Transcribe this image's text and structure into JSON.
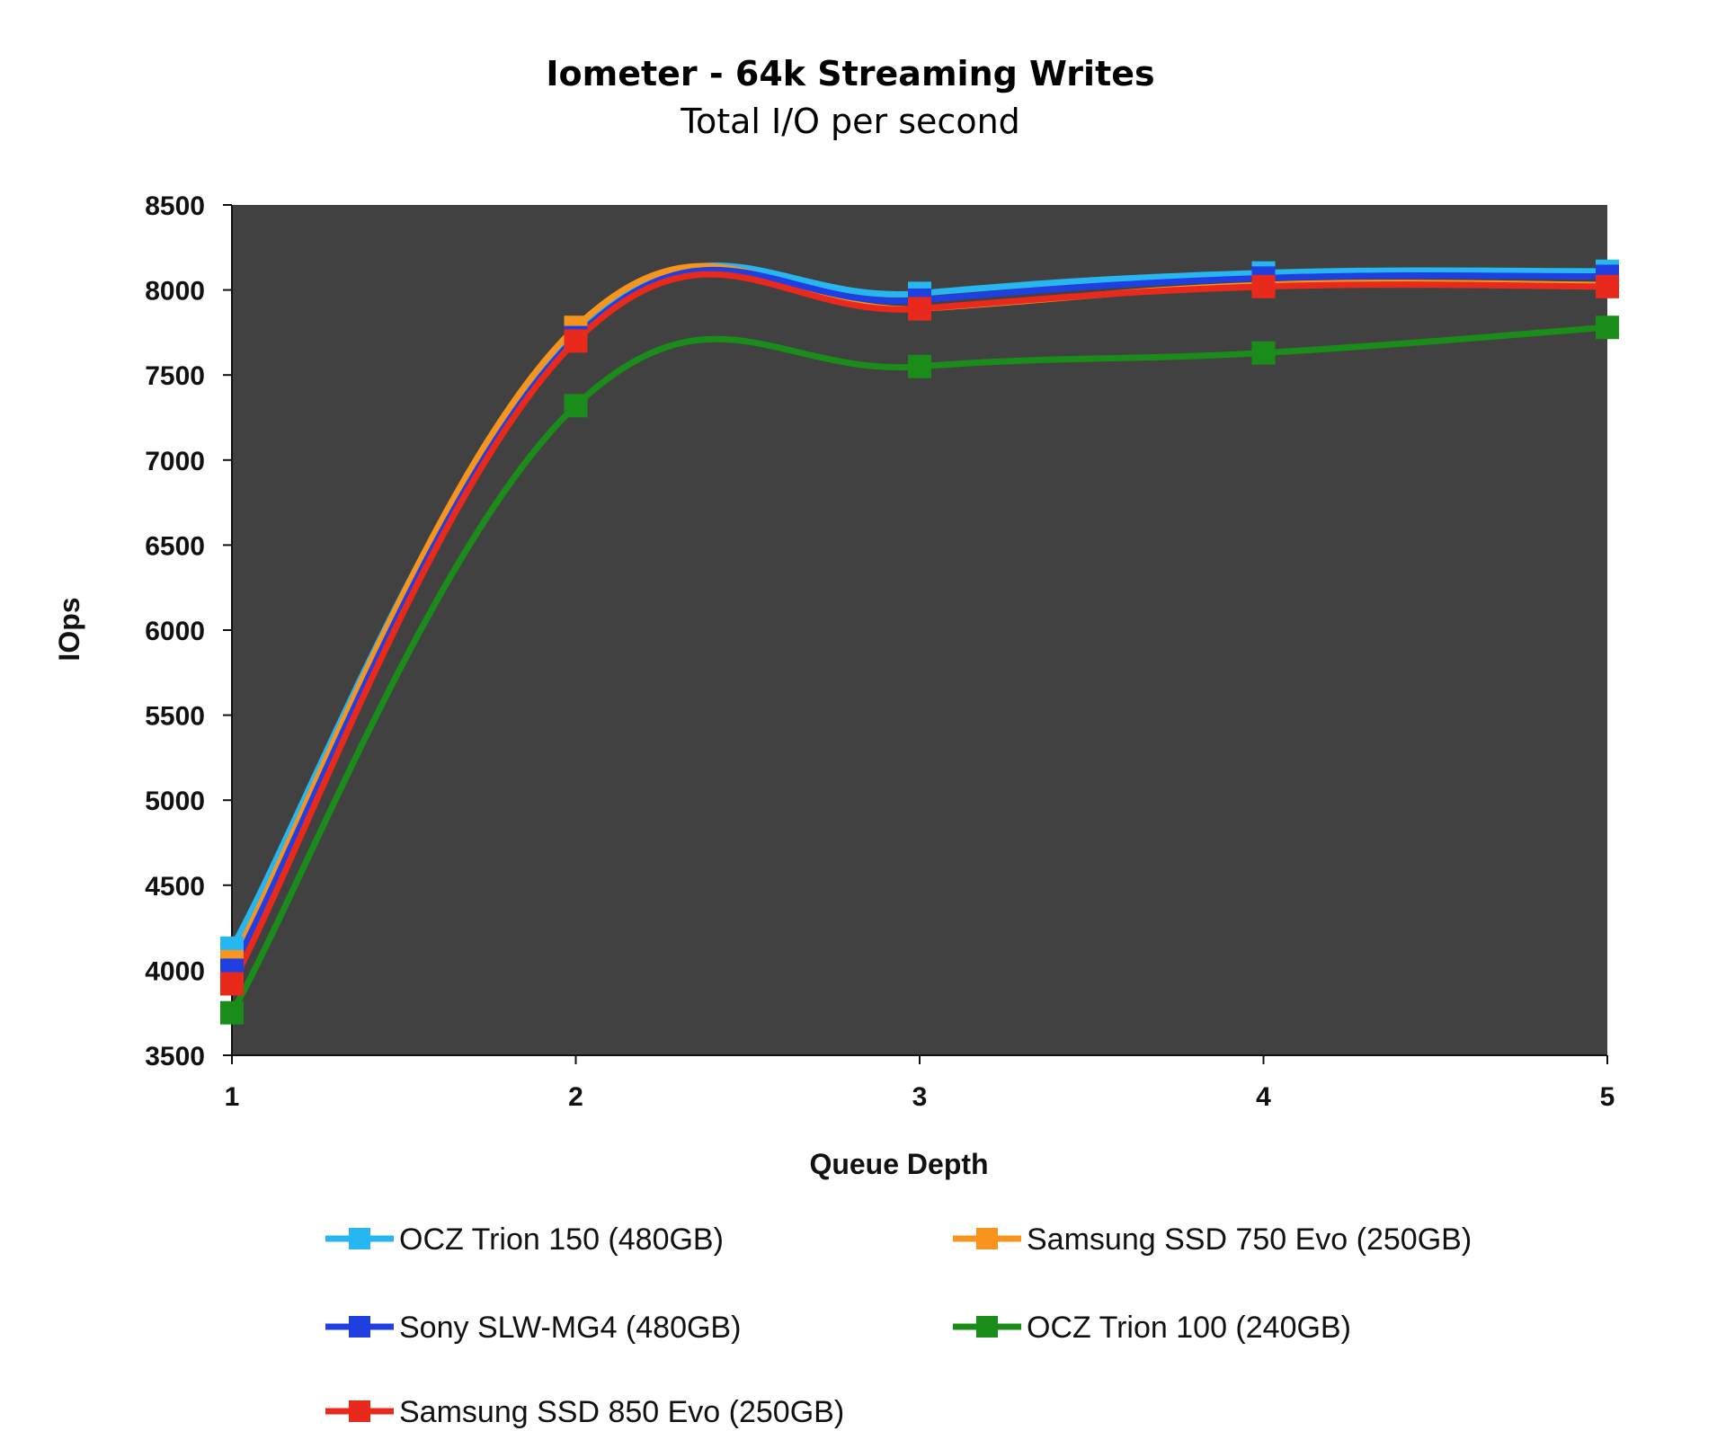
{
  "chart_data": {
    "type": "line",
    "title": "Iometer - 64k Streaming Writes",
    "subtitle": "Total I/O per second",
    "xlabel": "Queue Depth",
    "ylabel": "IOps",
    "x": [
      1,
      2,
      3,
      4,
      5
    ],
    "xticks": [
      "1",
      "2",
      "3",
      "4",
      "5"
    ],
    "ylim": [
      3500,
      8500
    ],
    "yticks": [
      "3500",
      "4000",
      "4500",
      "5000",
      "5500",
      "6000",
      "6500",
      "7000",
      "7500",
      "8000",
      "8500"
    ],
    "grid": false,
    "plot_background": "#414141",
    "legend_position": "bottom",
    "series": [
      {
        "name": "OCZ Trion 150 (480GB)",
        "color": "#27b6ef",
        "values": [
          4130,
          7750,
          7980,
          8100,
          8110
        ]
      },
      {
        "name": "Samsung SSD 750 Evo (250GB)",
        "color": "#f7941e",
        "values": [
          4050,
          7780,
          7890,
          8030,
          8030
        ]
      },
      {
        "name": "Sony SLW-MG4 (480GB)",
        "color": "#1f3fe0",
        "values": [
          4000,
          7720,
          7940,
          8070,
          8080
        ]
      },
      {
        "name": "OCZ Trion 100 (240GB)",
        "color": "#1a8c1a",
        "values": [
          3750,
          7320,
          7550,
          7630,
          7780
        ]
      },
      {
        "name": "Samsung SSD 850 Evo (250GB)",
        "color": "#e8291c",
        "values": [
          3920,
          7700,
          7890,
          8020,
          8020
        ]
      }
    ]
  }
}
